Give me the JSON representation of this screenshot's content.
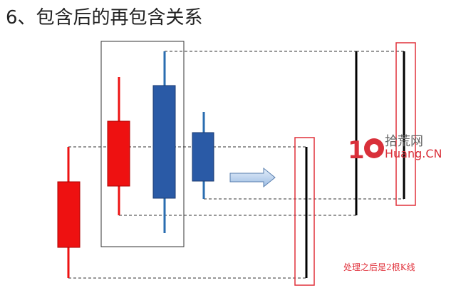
{
  "title": "6、包含后的再包含关系",
  "note": "处理之后是2根K线",
  "logo": {
    "mark": "10",
    "cn": "拾荒网",
    "en": "Huang.CN"
  },
  "colors": {
    "bull": "#ee1111",
    "bear": "#2a5aa6",
    "highlight": "#e0303a",
    "line": "#000000",
    "arrow": "#a9c4e6"
  },
  "candles": [
    {
      "color": "red"
    },
    {
      "color": "red"
    },
    {
      "color": "blue"
    },
    {
      "color": "blue"
    }
  ]
}
